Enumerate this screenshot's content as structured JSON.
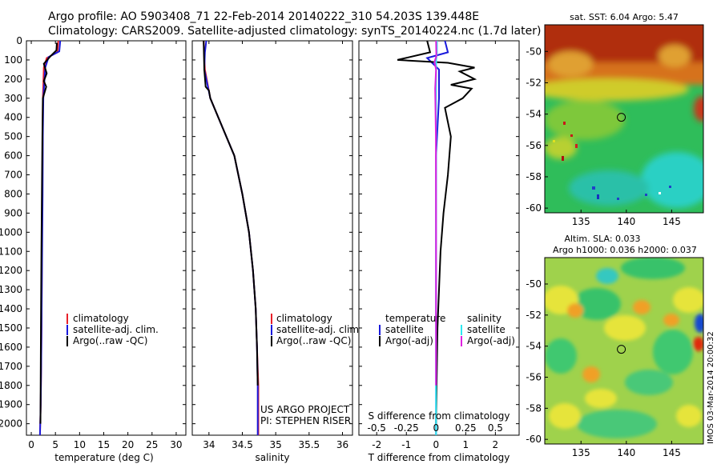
{
  "header": {
    "line1": "Argo profile: AO 5903408_71 22-Feb-2014 20140222_310 54.203S 139.448E",
    "line2": "Climatology: CARS2009. Satellite-adjusted climatology: synTS_20140224.nc (1.7d later)"
  },
  "colors": {
    "climatology": "#e8202a",
    "satellite_adj": "#1a1adc",
    "argo": "#000000",
    "t_satellite": "#1a1adc",
    "t_argo": "#000000",
    "s_satellite": "#2ee8f0",
    "s_argo": "#e020e0"
  },
  "panel_temp": {
    "xlabel": "temperature (deg C)",
    "legend": [
      "climatology",
      "satellite-adj. clim.",
      "Argo(..raw -QC)"
    ]
  },
  "panel_sal": {
    "xlabel": "salinity",
    "legend": [
      "climatology",
      "satellite-adj. clim.",
      "Argo(..raw -QC)"
    ],
    "credit1": "US ARGO PROJECT",
    "credit2": "PI: STEPHEN RISER"
  },
  "panel_diff": {
    "xlabel": "T difference from climatology",
    "top_label": "S difference from climatology",
    "s_ticks": [
      "-0.5",
      "-0.25",
      "0",
      "0.25",
      "0.5"
    ],
    "legend_t_title": "temperature",
    "legend_t_sat": "satellite",
    "legend_t_argo": "Argo(-adj)",
    "legend_s_title": "salinity",
    "legend_s_sat": "satellite",
    "legend_s_argo": "Argo(-adj)"
  },
  "map_sst": {
    "title": "sat. SST: 6.04 Argo: 5.47"
  },
  "map_sla": {
    "title1": "Altim. SLA: 0.033",
    "title2": "Argo h1000: 0.036 h2000: 0.037",
    "timestamp": "IMOS 03-Mar-2014 20:00:32"
  },
  "chart_data": [
    {
      "type": "line",
      "xlabel": "temperature (deg C)",
      "ylabel": "",
      "xlim": [
        -1,
        32
      ],
      "ylim": [
        2060,
        0
      ],
      "xticks": [
        0,
        5,
        10,
        15,
        20,
        25,
        30
      ],
      "yticks": [
        0,
        100,
        200,
        300,
        400,
        500,
        600,
        700,
        800,
        900,
        1000,
        1100,
        1200,
        1300,
        1400,
        1500,
        1600,
        1700,
        1800,
        1900,
        2000
      ],
      "series": [
        {
          "name": "climatology",
          "color": "#e8202a",
          "x": [
            5.6,
            5.4,
            3.2,
            2.6,
            2.4,
            2.35,
            2.3,
            2.2,
            2.15,
            2.05,
            1.95,
            1.8
          ],
          "y": [
            0,
            60,
            90,
            140,
            300,
            500,
            800,
            1100,
            1400,
            1700,
            1900,
            2060
          ]
        },
        {
          "name": "satellite-adj. clim.",
          "color": "#1a1adc",
          "x": [
            6.0,
            5.8,
            3.6,
            2.9,
            2.5,
            2.4,
            2.35,
            2.25,
            2.15,
            2.05,
            1.95,
            1.8
          ],
          "y": [
            0,
            55,
            85,
            140,
            300,
            500,
            800,
            1100,
            1400,
            1700,
            1900,
            2060
          ]
        },
        {
          "name": "Argo(..raw -QC)",
          "color": "#000000",
          "x": [
            5.3,
            5.2,
            4.0,
            2.6,
            3.2,
            2.6,
            3.1,
            2.4,
            2.3,
            2.2,
            2.1,
            2.0,
            1.9
          ],
          "y": [
            10,
            50,
            80,
            120,
            170,
            210,
            240,
            300,
            500,
            800,
            1100,
            1500,
            2000
          ]
        }
      ]
    },
    {
      "type": "line",
      "xlabel": "salinity",
      "ylabel": "",
      "xlim": [
        33.75,
        36.15
      ],
      "ylim": [
        2060,
        0
      ],
      "xticks": [
        34,
        34.5,
        35,
        35.5,
        36
      ],
      "series": [
        {
          "name": "climatology",
          "color": "#e8202a",
          "x": [
            33.92,
            33.93,
            33.94,
            34.02,
            34.2,
            34.38,
            34.5,
            34.6,
            34.66,
            34.7,
            34.72,
            34.74,
            34.74
          ],
          "y": [
            0,
            80,
            150,
            300,
            450,
            600,
            800,
            1000,
            1200,
            1400,
            1600,
            1800,
            2060
          ]
        },
        {
          "name": "satellite-adj. clim.",
          "color": "#1a1adc",
          "x": [
            33.96,
            33.94,
            33.93,
            34.02,
            34.2,
            34.38,
            34.5,
            34.6,
            34.66,
            34.7,
            34.72,
            34.73,
            34.73
          ],
          "y": [
            0,
            60,
            150,
            300,
            450,
            600,
            800,
            1000,
            1200,
            1400,
            1600,
            1800,
            2060
          ]
        },
        {
          "name": "Argo(..raw -QC)",
          "color": "#000000",
          "x": [
            33.92,
            33.93,
            33.95,
            34.0,
            34.02,
            34.2,
            34.38,
            34.5,
            34.6,
            34.66,
            34.7,
            34.72,
            34.73
          ],
          "y": [
            0,
            150,
            240,
            260,
            300,
            450,
            600,
            800,
            1000,
            1200,
            1400,
            1600,
            1800
          ]
        }
      ]
    },
    {
      "type": "line",
      "xlabel": "T difference from climatology",
      "x2label": "S difference from climatology",
      "xlim": [
        -2.6,
        2.8
      ],
      "ylim": [
        2060,
        0
      ],
      "xticks": [
        -2,
        -1,
        0,
        1,
        2
      ],
      "x2lim": [
        -0.65,
        0.7
      ],
      "x2ticks": [
        -0.5,
        -0.25,
        0,
        0.25,
        0.5
      ],
      "series": [
        {
          "name": "T satellite",
          "color": "#1a1adc",
          "x": [
            0.3,
            0.4,
            -0.3,
            0.1,
            0.1,
            0.0,
            0.0,
            0.0,
            0.0
          ],
          "y": [
            0,
            60,
            90,
            150,
            300,
            600,
            1000,
            1500,
            2060
          ]
        },
        {
          "name": "T Argo(-adj)",
          "color": "#000000",
          "x": [
            -0.3,
            -0.2,
            -1.3,
            0.4,
            1.3,
            0.8,
            1.3,
            0.5,
            1.2,
            0.9,
            0.3,
            0.5,
            0.4,
            0.25,
            0.15,
            0.05,
            0.0
          ],
          "y": [
            0,
            60,
            100,
            115,
            140,
            160,
            200,
            230,
            250,
            300,
            350,
            500,
            700,
            900,
            1100,
            1500,
            2000
          ]
        },
        {
          "name": "S satellite",
          "color": "#2ee8f0",
          "x": [
            0.03,
            0.03,
            0.005,
            0.0,
            0.0,
            0.0,
            0.0
          ],
          "y": [
            0,
            60,
            100,
            200,
            600,
            1200,
            2060
          ]
        },
        {
          "name": "S Argo(-adj)",
          "color": "#e020e0",
          "x": [
            0.0,
            0.01,
            -0.05,
            0.0,
            -0.03,
            -0.005,
            0.0,
            0.0
          ],
          "y": [
            0,
            80,
            110,
            150,
            250,
            500,
            1000,
            1800
          ]
        }
      ]
    },
    {
      "type": "heatmap",
      "title": "sat. SST: 6.04 Argo: 5.47",
      "xlim": [
        131,
        148.5
      ],
      "ylim": [
        -60.3,
        -48.3
      ],
      "xticks": [
        135,
        140,
        145
      ],
      "yticks": [
        -50,
        -52,
        -54,
        -56,
        -58,
        -60
      ],
      "marker": {
        "lon": 139.448,
        "lat": -54.203
      }
    },
    {
      "type": "heatmap",
      "title": "Altim. SLA: 0.033",
      "xlim": [
        131,
        148.5
      ],
      "ylim": [
        -60.3,
        -48.3
      ],
      "xticks": [
        135,
        140,
        145
      ],
      "yticks": [
        -50,
        -52,
        -54,
        -56,
        -58,
        -60
      ],
      "marker": {
        "lon": 139.448,
        "lat": -54.203
      }
    }
  ]
}
